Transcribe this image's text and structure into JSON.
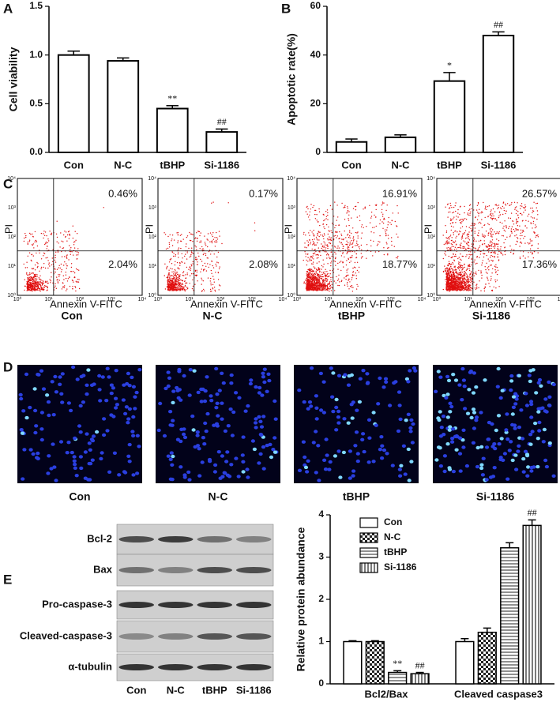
{
  "chart_data": [
    {
      "type": "bar",
      "panel_label": "A",
      "ylabel": "Cell viability",
      "categories": [
        "Con",
        "N-C",
        "tBHP",
        "Si-1186"
      ],
      "values": [
        1.0,
        0.94,
        0.45,
        0.21
      ],
      "errors": [
        0.04,
        0.03,
        0.03,
        0.03
      ],
      "color": "#ffffff",
      "ylim": [
        0,
        1.5
      ],
      "yticks": [
        {
          "value": 0,
          "label": "0.0"
        },
        {
          "value": 0.5,
          "label": "0.5"
        },
        {
          "value": 1,
          "label": "1.0"
        },
        {
          "value": 1.5,
          "label": "1.5"
        }
      ],
      "annotations": [
        {
          "index": 2,
          "text": "**"
        },
        {
          "index": 3,
          "text": "##"
        }
      ]
    },
    {
      "type": "bar",
      "panel_label": "B",
      "ylabel": "Apoptotic rate(%)",
      "categories": [
        "Con",
        "N-C",
        "tBHP",
        "Si-1186"
      ],
      "values": [
        4.3,
        6.2,
        29.3,
        48
      ],
      "errors": [
        1.2,
        1.0,
        3.5,
        1.5
      ],
      "color": "#ffffff",
      "ylim": [
        0,
        60
      ],
      "yticks": [
        0,
        20,
        40,
        60
      ],
      "annotations": [
        {
          "index": 2,
          "text": "*"
        },
        {
          "index": 3,
          "text": "##"
        }
      ]
    },
    {
      "type": "grouped_bar",
      "ylabel": "Relative protein abundance",
      "categories": [
        "Bcl2/Bax",
        "Cleaved caspase3"
      ],
      "series": [
        {
          "name": "Con",
          "pattern": "none",
          "values": [
            1.0,
            1.0
          ],
          "errors": [
            0.02,
            0.07
          ]
        },
        {
          "name": "N-C",
          "pattern": "checker",
          "values": [
            1.0,
            1.22
          ],
          "errors": [
            0.02,
            0.1
          ]
        },
        {
          "name": "tBHP",
          "pattern": "hlines",
          "values": [
            0.27,
            3.22
          ],
          "errors": [
            0.04,
            0.12
          ]
        },
        {
          "name": "Si-1186",
          "pattern": "vlines",
          "values": [
            0.24,
            3.75
          ],
          "errors": [
            0.03,
            0.13
          ]
        }
      ],
      "legend": "upper-left",
      "ylim": [
        0,
        4
      ],
      "yticks": [
        0,
        1,
        2,
        3,
        4
      ],
      "annotations": [
        {
          "series": 2,
          "index": 0,
          "text": "**"
        },
        {
          "series": 3,
          "index": 0,
          "text": "##"
        },
        {
          "series": 3,
          "index": 1,
          "text": "##"
        }
      ]
    }
  ],
  "flow": {
    "panel_label": "C",
    "x_label": "Annexin V-FITC",
    "y_label": "PI",
    "ticks": [
      "10⁰",
      "10¹",
      "10²",
      "10³",
      "10⁴"
    ],
    "plots": [
      {
        "name": "Con",
        "upper_right": "0.46%",
        "lower_right": "2.04%"
      },
      {
        "name": "N-C",
        "upper_right": "0.17%",
        "lower_right": "2.08%"
      },
      {
        "name": "tBHP",
        "upper_right": "16.91%",
        "lower_right": "18.77%"
      },
      {
        "name": "Si-1186",
        "upper_right": "26.57%",
        "lower_right": "17.36%"
      }
    ]
  },
  "images": {
    "panel_label": "D",
    "names": [
      "Con",
      "N-C",
      "tBHP",
      "Si-1186"
    ]
  },
  "blot": {
    "panel_label": "E",
    "rows": [
      "Bcl-2",
      "Bax",
      "Pro-caspase-3",
      "Cleaved-caspase-3",
      "α-tubulin"
    ],
    "lanes": [
      "Con",
      "N-C",
      "tBHP",
      "Si-1186"
    ]
  }
}
